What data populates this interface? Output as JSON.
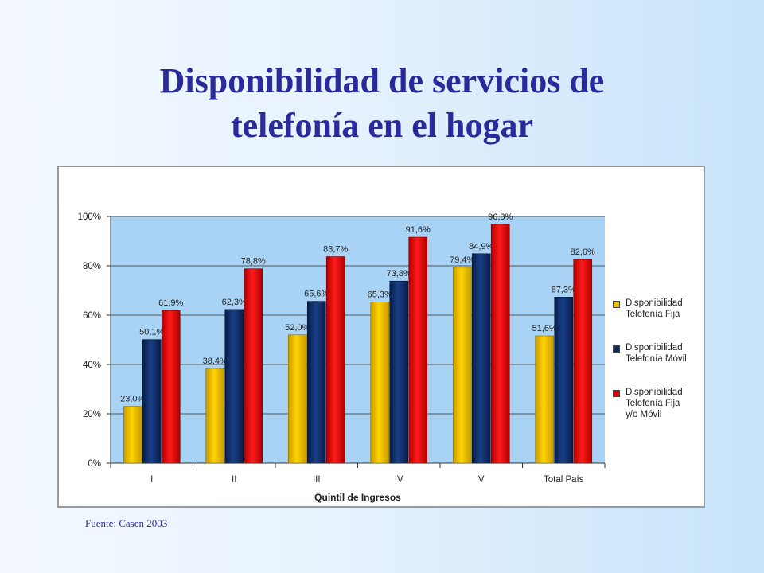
{
  "slide": {
    "title_line1": "Disponibilidad de servicios de",
    "title_line2": "telefonía en el hogar",
    "source": "Fuente: Casen 2003"
  },
  "colors": {
    "fija": "#f2c200",
    "movil": "#0d2e6b",
    "fija_movil": "#e00000",
    "plot_bg": "#a9d3f4"
  },
  "chart_data": {
    "type": "bar",
    "title": "",
    "xlabel": "Quintil de Ingresos",
    "ylabel": "",
    "ylim": [
      0,
      100
    ],
    "y_ticks": [
      "0%",
      "20%",
      "40%",
      "60%",
      "80%",
      "100%"
    ],
    "grid": true,
    "legend_position": "right",
    "categories": [
      "I",
      "II",
      "III",
      "IV",
      "V",
      "Total País"
    ],
    "series": [
      {
        "name": "Disponibilidad Telefonía Fija",
        "legend_lines": [
          "Disponibilidad",
          "Telefonía Fija"
        ],
        "values": [
          23.0,
          38.4,
          52.0,
          65.3,
          79.4,
          51.6
        ],
        "labels": [
          "23,0%",
          "38,4%",
          "52,0%",
          "65,3%",
          "79,4%",
          "51,6%"
        ]
      },
      {
        "name": "Disponibilidad Telefonía Móvil",
        "legend_lines": [
          "Disponibilidad",
          "Telefonía Móvil"
        ],
        "values": [
          50.1,
          62.3,
          65.6,
          73.8,
          84.9,
          67.3
        ],
        "labels": [
          "50,1%",
          "62,3%",
          "65,6%",
          "73,8%",
          "84,9%",
          "67,3%"
        ]
      },
      {
        "name": "Disponibilidad Telefonía Fija y/o Móvil",
        "legend_lines": [
          "Disponibilidad",
          "Telefonía Fija",
          "y/o Móvil"
        ],
        "values": [
          61.9,
          78.8,
          83.7,
          91.6,
          96.8,
          82.6
        ],
        "labels": [
          "61,9%",
          "78,8%",
          "83,7%",
          "91,6%",
          "96,8%",
          "82,6%"
        ]
      }
    ]
  }
}
